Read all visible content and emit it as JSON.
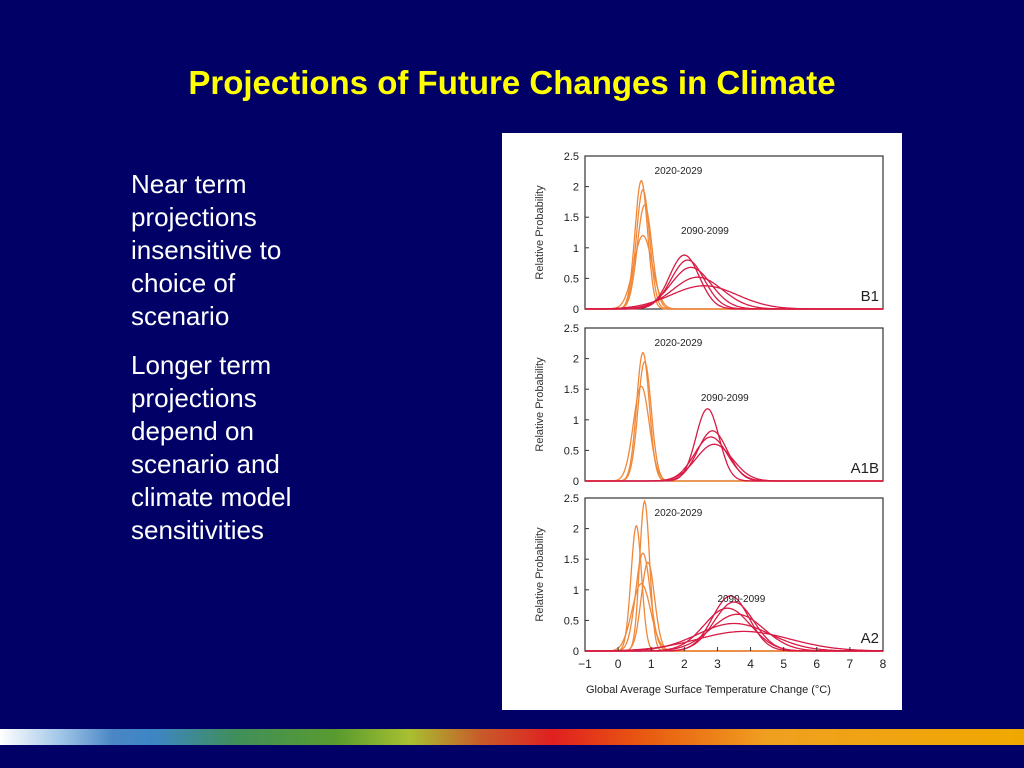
{
  "slide": {
    "title": "Projections of Future Changes in Climate",
    "bullets": [
      "Near term\nprojections\ninsensitive to\nchoice of\nscenario",
      "Longer term\nprojections\ndepend  on\nscenario and\nclimate model\nsensitivities"
    ]
  },
  "colors": {
    "background": "#000066",
    "title": "#ffff00",
    "near_term_series": "#f0883a",
    "long_term_series": "#d81b44"
  },
  "chart_data": [
    {
      "type": "line",
      "panel": "B1",
      "ylabel": "Relative Probability",
      "xlim": [
        -1,
        8
      ],
      "ylim": [
        0,
        2.5
      ],
      "yticks": [
        "2.5",
        "2",
        "1.5",
        "1",
        "0.5",
        "0"
      ],
      "series": [
        {
          "name": "2020-2029",
          "group": "near",
          "curves": [
            {
              "mu": 0.7,
              "sigma": 0.19,
              "peak": 2.1
            },
            {
              "mu": 0.75,
              "sigma": 0.2,
              "peak": 1.95
            },
            {
              "mu": 0.8,
              "sigma": 0.22,
              "peak": 1.7
            },
            {
              "mu": 0.75,
              "sigma": 0.28,
              "peak": 1.2
            }
          ]
        },
        {
          "name": "2090-2099",
          "group": "long",
          "curves": [
            {
              "mu": 2.0,
              "sigma": 0.45,
              "peak": 0.88
            },
            {
              "mu": 2.1,
              "sigma": 0.5,
              "peak": 0.8
            },
            {
              "mu": 2.2,
              "sigma": 0.6,
              "peak": 0.68
            },
            {
              "mu": 2.4,
              "sigma": 0.75,
              "peak": 0.52
            },
            {
              "mu": 2.6,
              "sigma": 1.0,
              "peak": 0.38
            }
          ]
        }
      ]
    },
    {
      "type": "line",
      "panel": "A1B",
      "ylabel": "Relative Probability",
      "xlim": [
        -1,
        8
      ],
      "ylim": [
        0,
        2.5
      ],
      "yticks": [
        "2.5",
        "2",
        "1.5",
        "1",
        "0.5",
        "0"
      ],
      "series": [
        {
          "name": "2020-2029",
          "group": "near",
          "curves": [
            {
              "mu": 0.75,
              "sigma": 0.19,
              "peak": 2.1
            },
            {
              "mu": 0.8,
              "sigma": 0.2,
              "peak": 1.95
            },
            {
              "mu": 0.7,
              "sigma": 0.24,
              "peak": 1.55
            }
          ]
        },
        {
          "name": "2090-2099",
          "group": "long",
          "curves": [
            {
              "mu": 2.7,
              "sigma": 0.35,
              "peak": 1.18
            },
            {
              "mu": 2.85,
              "sigma": 0.45,
              "peak": 0.82
            },
            {
              "mu": 2.8,
              "sigma": 0.5,
              "peak": 0.72
            },
            {
              "mu": 2.9,
              "sigma": 0.55,
              "peak": 0.6
            }
          ]
        }
      ]
    },
    {
      "type": "line",
      "panel": "A2",
      "ylabel": "Relative Probability",
      "xlabel": "Global Average Surface Temperature Change (°C)",
      "xlim": [
        -1,
        8
      ],
      "ylim": [
        0,
        2.5
      ],
      "xticks": [
        "−1",
        "0",
        "1",
        "2",
        "3",
        "4",
        "5",
        "6",
        "7",
        "8"
      ],
      "yticks": [
        "2.5",
        "2",
        "1.5",
        "1",
        "0.5",
        "0"
      ],
      "series": [
        {
          "name": "2020-2029",
          "group": "near",
          "curves": [
            {
              "mu": 0.55,
              "sigma": 0.16,
              "peak": 2.05
            },
            {
              "mu": 0.8,
              "sigma": 0.15,
              "peak": 2.45
            },
            {
              "mu": 0.75,
              "sigma": 0.22,
              "peak": 1.6
            },
            {
              "mu": 0.9,
              "sigma": 0.2,
              "peak": 1.45
            },
            {
              "mu": 0.7,
              "sigma": 0.28,
              "peak": 1.1
            }
          ]
        },
        {
          "name": "2090-2099",
          "group": "long",
          "curves": [
            {
              "mu": 3.4,
              "sigma": 0.55,
              "peak": 0.9
            },
            {
              "mu": 3.5,
              "sigma": 0.6,
              "peak": 0.8
            },
            {
              "mu": 3.3,
              "sigma": 0.7,
              "peak": 0.7
            },
            {
              "mu": 3.6,
              "sigma": 0.8,
              "peak": 0.6
            },
            {
              "mu": 3.5,
              "sigma": 1.1,
              "peak": 0.45
            },
            {
              "mu": 3.8,
              "sigma": 1.4,
              "peak": 0.32
            }
          ]
        }
      ]
    }
  ]
}
